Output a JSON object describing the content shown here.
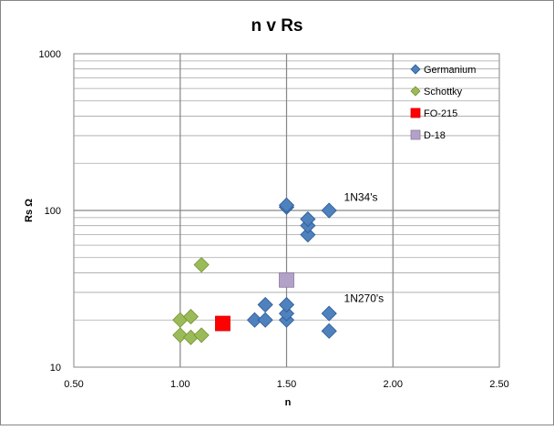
{
  "chart_data": {
    "type": "scatter",
    "title": "n v Rs",
    "xlabel": "n",
    "ylabel": "Rs  Ω",
    "xlim": [
      0.5,
      2.5
    ],
    "ylim": [
      10,
      1000
    ],
    "yscale": "log",
    "x_ticks": [
      "0.50",
      "1.00",
      "1.50",
      "2.00",
      "2.50"
    ],
    "y_ticks": [
      "10",
      "100",
      "1000"
    ],
    "grid": true,
    "legend_position": "top-right",
    "series": [
      {
        "name": "Germanium",
        "marker": "diamond",
        "color": "#4f81bd",
        "points": [
          {
            "x": 1.35,
            "y": 20
          },
          {
            "x": 1.4,
            "y": 20
          },
          {
            "x": 1.4,
            "y": 25
          },
          {
            "x": 1.5,
            "y": 20
          },
          {
            "x": 1.5,
            "y": 22
          },
          {
            "x": 1.5,
            "y": 25
          },
          {
            "x": 1.5,
            "y": 105
          },
          {
            "x": 1.5,
            "y": 108
          },
          {
            "x": 1.6,
            "y": 70
          },
          {
            "x": 1.6,
            "y": 80
          },
          {
            "x": 1.6,
            "y": 88
          },
          {
            "x": 1.7,
            "y": 100
          },
          {
            "x": 1.7,
            "y": 22
          },
          {
            "x": 1.7,
            "y": 17
          }
        ]
      },
      {
        "name": "Schottky",
        "marker": "diamond",
        "color": "#9bbb59",
        "points": [
          {
            "x": 1.1,
            "y": 45
          },
          {
            "x": 1.0,
            "y": 20
          },
          {
            "x": 1.05,
            "y": 21
          },
          {
            "x": 1.0,
            "y": 16
          },
          {
            "x": 1.05,
            "y": 15.5
          },
          {
            "x": 1.1,
            "y": 16
          }
        ]
      },
      {
        "name": "FO-215",
        "marker": "square",
        "color": "#ff0000",
        "points": [
          {
            "x": 1.2,
            "y": 19
          }
        ]
      },
      {
        "name": "D-18",
        "marker": "square",
        "color": "#b3a2c7",
        "points": [
          {
            "x": 1.5,
            "y": 36
          }
        ]
      }
    ],
    "annotations": [
      {
        "text": "1N34's",
        "x": 1.77,
        "y": 115
      },
      {
        "text": "1N270's",
        "x": 1.77,
        "y": 26
      }
    ]
  }
}
